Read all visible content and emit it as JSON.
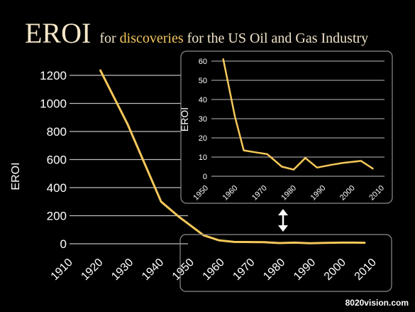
{
  "title": {
    "main": "EROI",
    "prefix": "for ",
    "highlight": "discoveries",
    "suffix": " for the US Oil and Gas Industry"
  },
  "credit": "8020vision.com",
  "colors": {
    "background": "#000000",
    "line": "#f5c85a",
    "title_highlight": "#f3c65e",
    "title_text": "#f0e3c8",
    "text": "#ffffff",
    "frame": "#8c8c8c"
  },
  "chart_data": [
    {
      "type": "line",
      "ylabel": "EROI",
      "xlim": [
        1910,
        2010
      ],
      "ylim": [
        0,
        1200
      ],
      "xticks": [
        "1910",
        "1920",
        "1930",
        "1940",
        "1950",
        "1960",
        "1970",
        "1980",
        "1990",
        "2000",
        "2010"
      ],
      "yticks": [
        "0",
        "200",
        "400",
        "600",
        "800",
        "1000",
        "1200"
      ],
      "grid": "horizontal",
      "series": [
        {
          "x": [
            1919,
            1928,
            1939,
            1945,
            1953,
            1958,
            1963,
            1973,
            1978,
            1983,
            1988,
            1993,
            1998,
            2003,
            2006
          ],
          "y": [
            1235,
            850,
            300,
            190,
            60,
            25,
            13,
            11,
            5,
            8,
            4,
            6,
            8,
            8,
            7
          ]
        }
      ]
    },
    {
      "type": "line",
      "ylabel": "EROI",
      "xlim": [
        1950,
        2010
      ],
      "ylim": [
        0,
        60
      ],
      "xticks": [
        "1950",
        "1960",
        "1970",
        "1980",
        "1990",
        "2000",
        "2010"
      ],
      "yticks": [
        "0",
        "10",
        "20",
        "30",
        "40",
        "50",
        "60"
      ],
      "grid": "horizontal",
      "series": [
        {
          "x": [
            1955,
            1959,
            1962,
            1966,
            1970,
            1975,
            1979,
            1983,
            1987,
            1992,
            1996,
            2002,
            2006
          ],
          "y": [
            61,
            31,
            13.5,
            12.5,
            11.5,
            5,
            3.5,
            9.5,
            4.5,
            6,
            7,
            8,
            4
          ]
        }
      ]
    }
  ]
}
